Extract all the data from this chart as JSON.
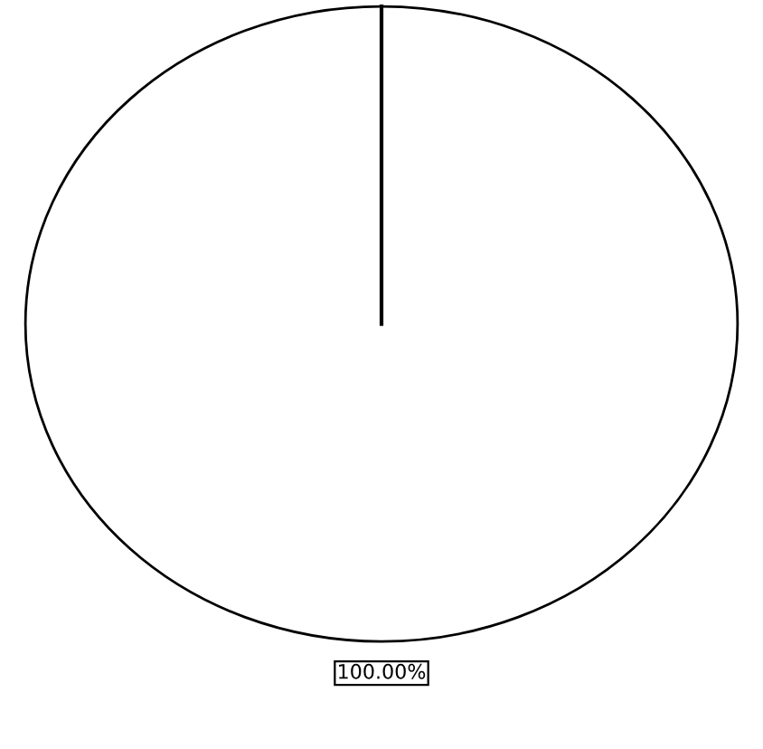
{
  "chart_data": {
    "type": "pie",
    "categories": [
      null
    ],
    "values": [
      100
    ],
    "colors": [
      "#ffffff"
    ],
    "value_labels": [
      "100.00%"
    ]
  }
}
